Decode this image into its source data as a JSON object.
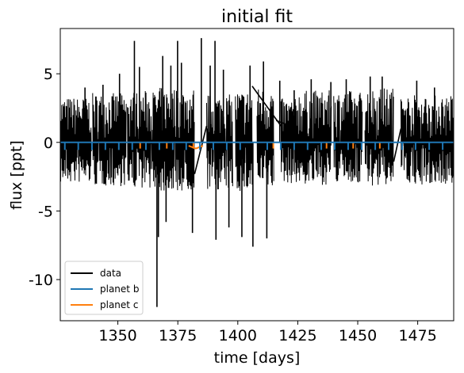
{
  "chart_data": {
    "type": "line",
    "title": "initial fit",
    "xlabel": "time [days]",
    "ylabel": "flux [ppt]",
    "xlim": [
      1326,
      1490
    ],
    "ylim": [
      -13,
      8.3
    ],
    "x_ticks": [
      {
        "value": 1350,
        "label": "1350"
      },
      {
        "value": 1375,
        "label": "1375"
      },
      {
        "value": 1400,
        "label": "1400"
      },
      {
        "value": 1425,
        "label": "1425"
      },
      {
        "value": 1450,
        "label": "1450"
      },
      {
        "value": 1475,
        "label": "1475"
      }
    ],
    "y_ticks": [
      {
        "value": 5,
        "label": "5"
      },
      {
        "value": 0,
        "label": "0"
      },
      {
        "value": -5,
        "label": "-5"
      },
      {
        "value": -10,
        "label": "-10"
      }
    ],
    "legend_position": "lower-left",
    "colors": {
      "data": "#000000",
      "planet_b": "#1f77b4",
      "planet_c": "#ff7f0e"
    },
    "series": [
      {
        "name": "data",
        "style": "noisy light curve",
        "segments": [
          {
            "x_start": 1326,
            "x_end": 1339,
            "y_low": -3.0,
            "y_high": 3.3
          },
          {
            "x_start": 1339.5,
            "x_end": 1353.5,
            "y_low": -3.2,
            "y_high": 3.6
          },
          {
            "x_start": 1354,
            "x_end": 1367,
            "y_low": -3.3,
            "y_high": 3.8
          },
          {
            "x_start": 1367,
            "x_end": 1382,
            "y_low": -3.6,
            "y_high": 4.0
          },
          {
            "x_start": 1387,
            "x_end": 1398,
            "y_low": -3.5,
            "y_high": 3.5
          },
          {
            "x_start": 1399,
            "x_end": 1406,
            "y_low": -3.6,
            "y_high": 3.8
          },
          {
            "x_start": 1408,
            "x_end": 1415,
            "y_low": -3.4,
            "y_high": 4.0
          },
          {
            "x_start": 1418,
            "x_end": 1425,
            "y_low": -3.0,
            "y_high": 3.2
          },
          {
            "x_start": 1425,
            "x_end": 1439,
            "y_low": -3.1,
            "y_high": 3.8
          },
          {
            "x_start": 1440,
            "x_end": 1452,
            "y_low": -3.0,
            "y_high": 3.8
          },
          {
            "x_start": 1453,
            "x_end": 1465,
            "y_low": -3.2,
            "y_high": 4.0
          },
          {
            "x_start": 1468,
            "x_end": 1490,
            "y_low": -3.1,
            "y_high": 3.5
          }
        ],
        "outliers": [
          {
            "x": 1336.3,
            "y": 4.0
          },
          {
            "x": 1343.8,
            "y": 4.2
          },
          {
            "x": 1350.7,
            "y": 5.0
          },
          {
            "x": 1356.9,
            "y": 7.4
          },
          {
            "x": 1359.0,
            "y": 5.5
          },
          {
            "x": 1366.3,
            "y": -12.0
          },
          {
            "x": 1366.9,
            "y": -6.9
          },
          {
            "x": 1368.7,
            "y": 6.3
          },
          {
            "x": 1370.1,
            "y": -5.8
          },
          {
            "x": 1372.1,
            "y": 5.6
          },
          {
            "x": 1374.9,
            "y": 7.4
          },
          {
            "x": 1376.5,
            "y": 5.8
          },
          {
            "x": 1381.1,
            "y": -6.6
          },
          {
            "x": 1384.8,
            "y": 7.6
          },
          {
            "x": 1388.5,
            "y": 5.6
          },
          {
            "x": 1390.5,
            "y": 7.4
          },
          {
            "x": 1390.9,
            "y": -7.1
          },
          {
            "x": 1394.0,
            "y": 5.3
          },
          {
            "x": 1396.3,
            "y": -6.2
          },
          {
            "x": 1401.7,
            "y": -6.9
          },
          {
            "x": 1405.1,
            "y": 5.6
          },
          {
            "x": 1406.3,
            "y": -7.6
          },
          {
            "x": 1410.7,
            "y": 5.9
          },
          {
            "x": 1412.1,
            "y": -7.0
          },
          {
            "x": 1417.5,
            "y": 4.5
          },
          {
            "x": 1423.5,
            "y": 3.8
          },
          {
            "x": 1430.6,
            "y": 4.6
          },
          {
            "x": 1438.8,
            "y": 4.4
          },
          {
            "x": 1445.2,
            "y": 4.6
          },
          {
            "x": 1455.2,
            "y": 4.8
          },
          {
            "x": 1460.2,
            "y": 4.8
          },
          {
            "x": 1474.6,
            "y": 4.5
          },
          {
            "x": 1482.0,
            "y": 4.0
          }
        ],
        "bridges": [
          {
            "x1": 1382,
            "y1": -2.3,
            "x2": 1387,
            "y2": 1.2
          },
          {
            "x1": 1406,
            "y1": 4.1,
            "x2": 1418,
            "y2": 1.2
          },
          {
            "x1": 1416,
            "y1": 1.6,
            "x2": 1425,
            "y2": 1.0
          },
          {
            "x1": 1465,
            "y1": -1.4,
            "x2": 1468,
            "y2": 1.0
          }
        ]
      },
      {
        "name": "planet b",
        "baseline": 0,
        "transit_depth": -0.55,
        "transit_times": [
          1327.9,
          1333.5,
          1339.2,
          1344.8,
          1350.4,
          1356.0,
          1361.7,
          1367.3,
          1372.9,
          1378.5,
          1384.2,
          1389.8,
          1395.4,
          1401.0,
          1412.3,
          1417.9,
          1423.5,
          1429.1,
          1434.8,
          1440.4,
          1446.0,
          1451.6,
          1457.3,
          1462.9,
          1468.5,
          1474.1,
          1479.8,
          1485.4
        ]
      },
      {
        "name": "planet c",
        "baseline": 0,
        "transit_depth": -0.45,
        "transit_times": [
          1359.3,
          1370.4,
          1381.5,
          1414.8,
          1437.0,
          1448.1,
          1459.2
        ]
      }
    ]
  }
}
